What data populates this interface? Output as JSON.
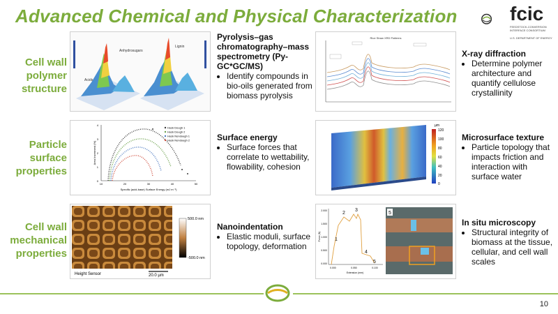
{
  "title": "Advanced Chemical and Physical Characterization",
  "logo": {
    "text": "fcic",
    "subtitle": "FEEDSTOCK-CONVERSION INTERFACE CONSORTIUM",
    "agency": "U.S. DEPARTMENT OF ENERGY"
  },
  "rows": [
    {
      "label_lines": [
        "Cell wall",
        "polymer",
        "structure"
      ]
    },
    {
      "label_lines": [
        "Particle",
        "surface",
        "properties"
      ]
    },
    {
      "label_lines": [
        "Cell wall",
        "mechanical",
        "properties"
      ]
    }
  ],
  "items": [
    {
      "heading": "Pyrolysis–gas chromatography–mass spectrometry (Py-GC*GC/MS)",
      "bullet": "Identify compounds in bio-oils generated from biomass pyrolysis"
    },
    {
      "heading": "X-ray diffraction",
      "bullet": "Determine polymer architecture and quantify cellulose crystallinity"
    },
    {
      "heading": "Surface energy",
      "bullet": "Surface forces that correlate to wettability, flowability, cohesion"
    },
    {
      "heading": "Microsurface texture",
      "bullet": "Particle topology that impacts friction and interaction with surface water"
    },
    {
      "heading": "Nanoindentation",
      "bullet": "Elastic moduli, surface topology, deformation"
    },
    {
      "heading": "In situ microscopy",
      "bullet": "Structural integrity of biomass at the tissue, cellular, and cell wall scales"
    }
  ],
  "figures": {
    "pygc": {
      "labels": [
        "Anhydrosugars",
        "Lignin",
        "Acids"
      ]
    },
    "xrd": {
      "title": "Rice Straw XRD Patterns"
    },
    "surface_energy": {
      "xlabel": "Specific (acid-base) Surface Energy (mJ m⁻²)",
      "ylabel": "Area Increment (%)",
      "legend": [
        "Husk Dough 1",
        "Husk Dough 2",
        "Husk Nondough 1",
        "Husk Nondough 2"
      ],
      "yticks": [
        "0",
        "1",
        "2",
        "3",
        "4"
      ],
      "xticks": [
        "10",
        "20",
        "30",
        "40",
        "50"
      ]
    },
    "texture": {
      "unit": "µm",
      "ticks": [
        "120",
        "100",
        "80",
        "60",
        "40",
        "20",
        "0"
      ]
    },
    "afm": {
      "scale_top": "500.0 nm",
      "scale_bottom": "-500.0 nm",
      "sensor": "Height Sensor",
      "scalebar": "20.0 µm"
    },
    "indent": {
      "ylabel": "Force (N)",
      "xlabel": "Extension (mm)",
      "points": [
        "1",
        "2",
        "3",
        "4",
        "5"
      ],
      "yticks": [
        "2.000",
        "1.500",
        "1.000",
        "0.500",
        "0.000"
      ],
      "xticks": [
        "0.000",
        "0.050",
        "0.100"
      ]
    },
    "micro": {
      "label": "5"
    }
  },
  "page_number": "10",
  "colors": {
    "accent_green": "#7cac3c",
    "footer_green": "#9bc25a"
  }
}
